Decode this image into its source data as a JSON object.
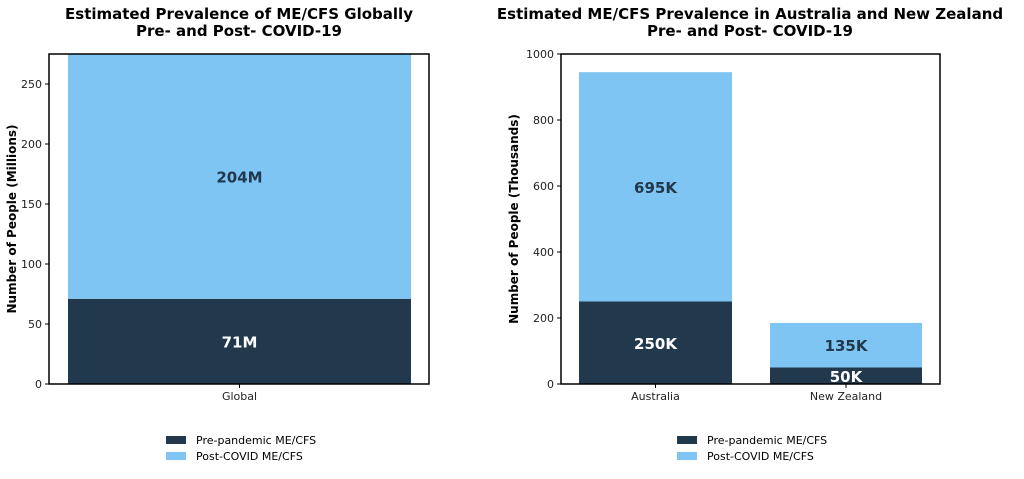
{
  "colors": {
    "pre": "#22384d",
    "post": "#7fc5f3"
  },
  "chart_data": [
    {
      "type": "bar",
      "stacked": true,
      "title": "Estimated Prevalence of ME/CFS Globally",
      "subtitle": "Pre- and Post- COVID-19",
      "xlabel": "",
      "ylabel": "Number of People (Millions)",
      "ylim": [
        0,
        275
      ],
      "yticks": [
        0,
        50,
        100,
        150,
        200,
        250
      ],
      "categories": [
        "Global"
      ],
      "series": [
        {
          "name": "Pre-pandemic ME/CFS",
          "values": [
            71
          ],
          "labels": [
            "71M"
          ]
        },
        {
          "name": "Post-COVID ME/CFS",
          "values": [
            204
          ],
          "labels": [
            "204M"
          ]
        }
      ],
      "legend": "bottom-center"
    },
    {
      "type": "bar",
      "stacked": true,
      "title": "Estimated ME/CFS Prevalence in Australia and New Zealand",
      "subtitle": "Pre- and Post- COVID-19",
      "xlabel": "",
      "ylabel": "Number of People (Thousands)",
      "ylim": [
        0,
        1000
      ],
      "yticks": [
        0,
        200,
        400,
        600,
        800,
        1000
      ],
      "categories": [
        "Australia",
        "New Zealand"
      ],
      "series": [
        {
          "name": "Pre-pandemic ME/CFS",
          "values": [
            250,
            50
          ],
          "labels": [
            "250K",
            "50K"
          ]
        },
        {
          "name": "Post-COVID ME/CFS",
          "values": [
            695,
            135
          ],
          "labels": [
            "695K",
            "135K"
          ]
        }
      ],
      "legend": "bottom-center"
    }
  ]
}
